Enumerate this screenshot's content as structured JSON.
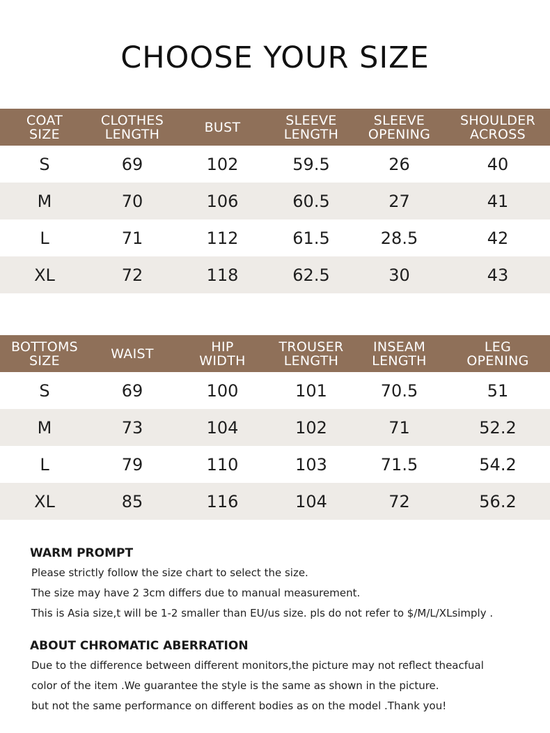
{
  "title": "CHOOSE YOUR SIZE",
  "coat_table": {
    "headers": [
      "COAT\nSIZE",
      "CLOTHES\nLENGTH",
      "BUST",
      "SLEEVE\nLENGTH",
      "SLEEVE\nOPENING",
      "SHOULDER\nACROSS"
    ],
    "rows": [
      [
        "S",
        "69",
        "102",
        "59.5",
        "26",
        "40"
      ],
      [
        "M",
        "70",
        "106",
        "60.5",
        "27",
        "41"
      ],
      [
        "L",
        "71",
        "112",
        "61.5",
        "28.5",
        "42"
      ],
      [
        "XL",
        "72",
        "118",
        "62.5",
        "30",
        "43"
      ]
    ]
  },
  "bottoms_table": {
    "headers": [
      "BOTTOMS\nSIZE",
      "WAIST",
      "HIP\nWIDTH",
      "TROUSER\nLENGTH",
      "INSEAM\nLENGTH",
      "LEG\nOPENING"
    ],
    "rows": [
      [
        "S",
        "69",
        "100",
        "101",
        "70.5",
        "51"
      ],
      [
        "M",
        "73",
        "104",
        "102",
        "71",
        "52.2"
      ],
      [
        "L",
        "79",
        "110",
        "103",
        "71.5",
        "54.2"
      ],
      [
        "XL",
        "85",
        "116",
        "104",
        "72",
        "56.2"
      ]
    ]
  },
  "warm_prompt": {
    "heading": "WARM PROMPT",
    "lines": [
      "Please strictly follow the size chart to select the size.",
      "The size may have 2 3cm differs due to manual measurement.",
      "This is Asia size,t will be 1-2 smaller than EU/us size. pls do not refer to $/M/L/XLsimply ."
    ]
  },
  "chromatic": {
    "heading": "ABOUT CHROMATIC ABERRATION",
    "lines": [
      "Due to the difference between different monitors,the picture may not reflect theacfual",
      "color of the item .We guarantee the style is the same as shown in the picture.",
      "but not the same performance on different bodies as on the model .Thank you!"
    ]
  },
  "colors": {
    "header_bg": "#8f7059",
    "alt_row_bg": "#eeebe7"
  }
}
